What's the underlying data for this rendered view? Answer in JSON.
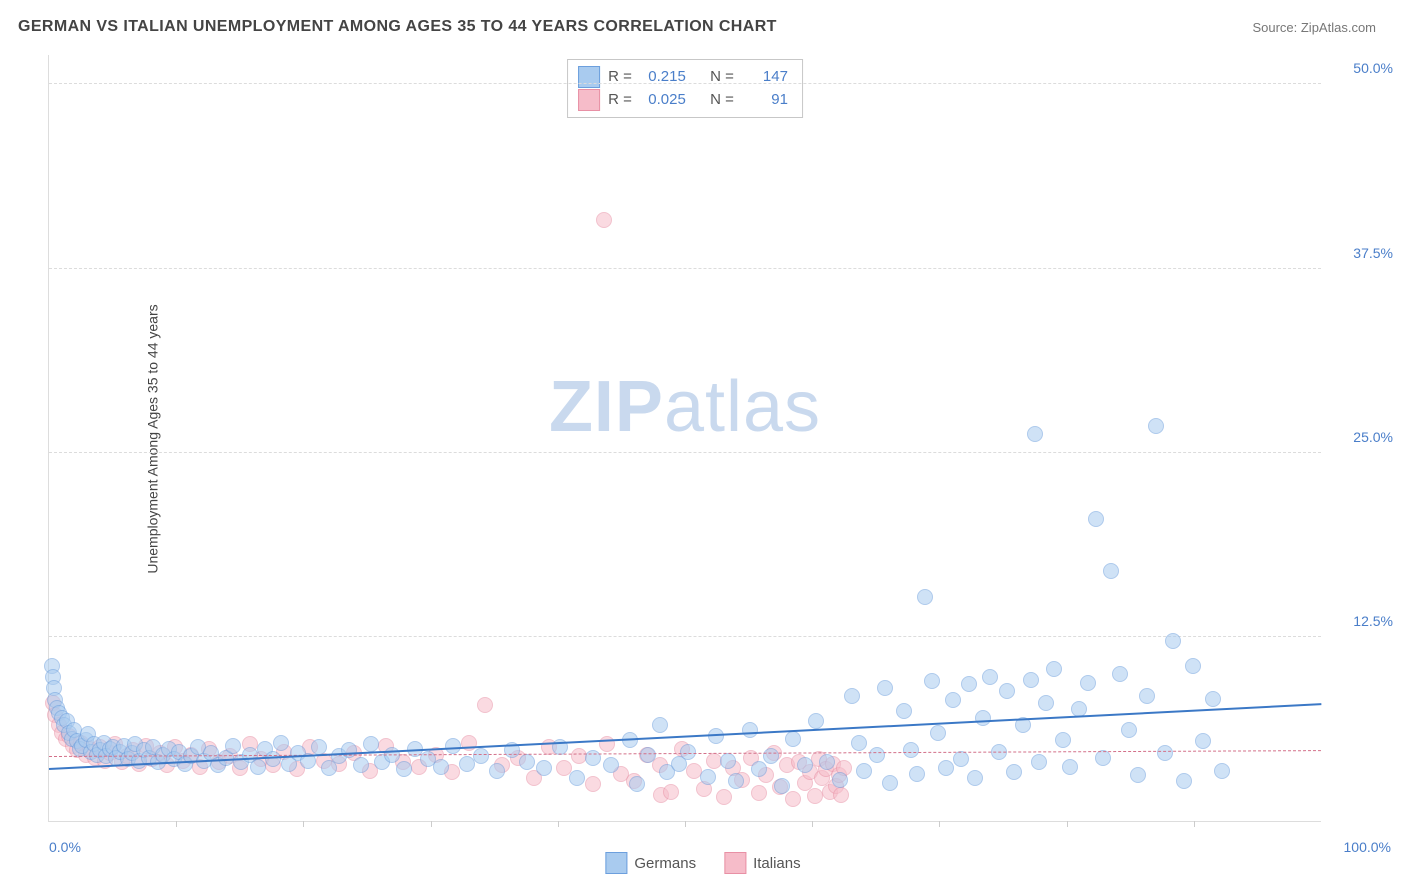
{
  "header": {
    "title": "GERMAN VS ITALIAN UNEMPLOYMENT AMONG AGES 35 TO 44 YEARS CORRELATION CHART",
    "source": "Source: ZipAtlas.com"
  },
  "watermark": {
    "part1": "ZIP",
    "part2": "atlas"
  },
  "chart": {
    "type": "scatter",
    "y_axis_title": "Unemployment Among Ages 35 to 44 years",
    "xlim": [
      0,
      100
    ],
    "ylim": [
      0,
      52
    ],
    "x_axis_labels": [
      {
        "pos": 0,
        "text": "0.0%"
      },
      {
        "pos": 100,
        "text": "100.0%"
      }
    ],
    "x_ticks": [
      10,
      20,
      30,
      40,
      50,
      60,
      70,
      80,
      90
    ],
    "y_gridlines": [
      {
        "val": 12.5,
        "label": "12.5%"
      },
      {
        "val": 25.0,
        "label": "25.0%"
      },
      {
        "val": 37.5,
        "label": "37.5%"
      },
      {
        "val": 50.0,
        "label": "50.0%"
      }
    ],
    "background_color": "#ffffff",
    "grid_color": "#dcdcdc",
    "marker_radius": 8,
    "marker_opacity": 0.55,
    "series": [
      {
        "name": "Germans",
        "fill_color": "#a9cbef",
        "stroke_color": "#6c9fdd",
        "trend": {
          "y_at_x0": 3.6,
          "y_at_x100": 8.0,
          "color": "#3b78c6",
          "width": 2.5,
          "dash": "solid"
        },
        "stats": {
          "R": "0.215",
          "N": "147"
        },
        "points": [
          [
            0.2,
            10.5
          ],
          [
            0.3,
            9.8
          ],
          [
            0.4,
            9.0
          ],
          [
            0.5,
            8.2
          ],
          [
            0.6,
            7.7
          ],
          [
            0.8,
            7.3
          ],
          [
            1.0,
            7.0
          ],
          [
            1.2,
            6.5
          ],
          [
            1.4,
            6.8
          ],
          [
            1.6,
            6.0
          ],
          [
            1.8,
            5.6
          ],
          [
            2.0,
            6.2
          ],
          [
            2.2,
            5.4
          ],
          [
            2.4,
            4.9
          ],
          [
            2.6,
            5.1
          ],
          [
            2.9,
            5.5
          ],
          [
            3.1,
            5.9
          ],
          [
            3.3,
            4.7
          ],
          [
            3.5,
            5.2
          ],
          [
            3.8,
            4.5
          ],
          [
            4.0,
            4.8
          ],
          [
            4.3,
            5.3
          ],
          [
            4.5,
            4.4
          ],
          [
            4.8,
            4.9
          ],
          [
            5.0,
            5.0
          ],
          [
            5.3,
            4.3
          ],
          [
            5.6,
            4.7
          ],
          [
            5.9,
            5.1
          ],
          [
            6.2,
            4.2
          ],
          [
            6.5,
            4.6
          ],
          [
            6.8,
            5.2
          ],
          [
            7.1,
            4.1
          ],
          [
            7.5,
            4.8
          ],
          [
            7.9,
            4.3
          ],
          [
            8.2,
            5.0
          ],
          [
            8.6,
            4.0
          ],
          [
            9.0,
            4.5
          ],
          [
            9.4,
            4.9
          ],
          [
            9.8,
            4.2
          ],
          [
            10.2,
            4.7
          ],
          [
            10.7,
            3.9
          ],
          [
            11.2,
            4.4
          ],
          [
            11.7,
            5.0
          ],
          [
            12.2,
            4.1
          ],
          [
            12.7,
            4.6
          ],
          [
            13.3,
            3.8
          ],
          [
            13.9,
            4.3
          ],
          [
            14.5,
            5.1
          ],
          [
            15.1,
            4.0
          ],
          [
            15.8,
            4.5
          ],
          [
            16.4,
            3.7
          ],
          [
            17.0,
            4.9
          ],
          [
            17.6,
            4.2
          ],
          [
            18.2,
            5.3
          ],
          [
            18.9,
            3.9
          ],
          [
            19.6,
            4.6
          ],
          [
            20.4,
            4.1
          ],
          [
            21.2,
            5.0
          ],
          [
            22.0,
            3.6
          ],
          [
            22.8,
            4.4
          ],
          [
            23.6,
            4.8
          ],
          [
            24.5,
            3.8
          ],
          [
            25.3,
            5.2
          ],
          [
            26.2,
            4.0
          ],
          [
            27.0,
            4.5
          ],
          [
            27.9,
            3.5
          ],
          [
            28.8,
            4.9
          ],
          [
            29.8,
            4.2
          ],
          [
            30.8,
            3.7
          ],
          [
            31.8,
            5.1
          ],
          [
            32.9,
            3.9
          ],
          [
            34.0,
            4.4
          ],
          [
            35.2,
            3.4
          ],
          [
            36.4,
            4.8
          ],
          [
            37.6,
            4.0
          ],
          [
            38.9,
            3.6
          ],
          [
            40.2,
            5.0
          ],
          [
            41.5,
            2.9
          ],
          [
            42.8,
            4.3
          ],
          [
            44.2,
            3.8
          ],
          [
            45.7,
            5.5
          ],
          [
            46.2,
            2.5
          ],
          [
            47.1,
            4.5
          ],
          [
            48.0,
            6.5
          ],
          [
            48.6,
            3.3
          ],
          [
            49.5,
            3.9
          ],
          [
            50.2,
            4.7
          ],
          [
            51.8,
            3.0
          ],
          [
            52.4,
            5.8
          ],
          [
            53.4,
            4.1
          ],
          [
            54.0,
            2.7
          ],
          [
            55.1,
            6.2
          ],
          [
            55.8,
            3.5
          ],
          [
            56.8,
            4.4
          ],
          [
            57.6,
            2.4
          ],
          [
            58.5,
            5.6
          ],
          [
            59.4,
            3.8
          ],
          [
            60.3,
            6.8
          ],
          [
            61.2,
            4.0
          ],
          [
            62.2,
            2.8
          ],
          [
            63.1,
            8.5
          ],
          [
            63.7,
            5.3
          ],
          [
            64.1,
            3.4
          ],
          [
            65.1,
            4.5
          ],
          [
            65.7,
            9.0
          ],
          [
            66.1,
            2.6
          ],
          [
            67.2,
            7.5
          ],
          [
            67.8,
            4.8
          ],
          [
            68.2,
            3.2
          ],
          [
            68.9,
            15.2
          ],
          [
            69.4,
            9.5
          ],
          [
            69.9,
            6.0
          ],
          [
            70.5,
            3.6
          ],
          [
            71.1,
            8.2
          ],
          [
            71.7,
            4.2
          ],
          [
            72.3,
            9.3
          ],
          [
            72.8,
            2.9
          ],
          [
            73.4,
            7.0
          ],
          [
            74.0,
            9.8
          ],
          [
            74.7,
            4.7
          ],
          [
            75.3,
            8.8
          ],
          [
            75.9,
            3.3
          ],
          [
            76.6,
            6.5
          ],
          [
            77.2,
            9.6
          ],
          [
            77.5,
            26.3
          ],
          [
            77.8,
            4.0
          ],
          [
            78.4,
            8.0
          ],
          [
            79.0,
            10.3
          ],
          [
            79.7,
            5.5
          ],
          [
            80.3,
            3.7
          ],
          [
            81.0,
            7.6
          ],
          [
            81.7,
            9.4
          ],
          [
            82.3,
            20.5
          ],
          [
            82.9,
            4.3
          ],
          [
            83.5,
            17.0
          ],
          [
            84.2,
            10.0
          ],
          [
            84.9,
            6.2
          ],
          [
            85.6,
            3.1
          ],
          [
            86.3,
            8.5
          ],
          [
            87.0,
            26.8
          ],
          [
            87.7,
            4.6
          ],
          [
            88.4,
            12.2
          ],
          [
            89.2,
            2.7
          ],
          [
            89.9,
            10.5
          ],
          [
            90.7,
            5.4
          ],
          [
            91.5,
            8.3
          ],
          [
            92.2,
            3.4
          ]
        ]
      },
      {
        "name": "Italians",
        "fill_color": "#f6bcc9",
        "stroke_color": "#e890a5",
        "trend": {
          "y_at_x0": 4.4,
          "y_at_x100": 4.8,
          "color": "#d37089",
          "width": 1.5,
          "dash": "dashed"
        },
        "stats": {
          "R": "0.025",
          "N": "91"
        },
        "points": [
          [
            0.3,
            8.0
          ],
          [
            0.5,
            7.2
          ],
          [
            0.8,
            6.5
          ],
          [
            1.0,
            6.0
          ],
          [
            1.3,
            5.6
          ],
          [
            1.6,
            5.8
          ],
          [
            1.9,
            5.1
          ],
          [
            2.2,
            4.8
          ],
          [
            2.5,
            5.3
          ],
          [
            2.9,
            4.5
          ],
          [
            3.2,
            4.9
          ],
          [
            3.6,
            4.3
          ],
          [
            4.0,
            5.0
          ],
          [
            4.4,
            4.1
          ],
          [
            4.8,
            4.6
          ],
          [
            5.2,
            5.2
          ],
          [
            5.7,
            4.0
          ],
          [
            6.1,
            4.4
          ],
          [
            6.6,
            4.8
          ],
          [
            7.1,
            3.9
          ],
          [
            7.6,
            5.1
          ],
          [
            8.1,
            4.2
          ],
          [
            8.7,
            4.6
          ],
          [
            9.3,
            3.8
          ],
          [
            9.9,
            5.0
          ],
          [
            10.5,
            4.1
          ],
          [
            11.2,
            4.5
          ],
          [
            11.9,
            3.7
          ],
          [
            12.6,
            4.9
          ],
          [
            13.4,
            4.0
          ],
          [
            14.2,
            4.4
          ],
          [
            15.0,
            3.6
          ],
          [
            15.8,
            5.2
          ],
          [
            16.7,
            4.2
          ],
          [
            17.6,
            3.8
          ],
          [
            18.5,
            4.7
          ],
          [
            19.5,
            3.5
          ],
          [
            20.5,
            5.0
          ],
          [
            21.6,
            4.1
          ],
          [
            22.8,
            3.9
          ],
          [
            24.0,
            4.6
          ],
          [
            25.2,
            3.4
          ],
          [
            26.5,
            5.1
          ],
          [
            27.8,
            4.0
          ],
          [
            29.1,
            3.7
          ],
          [
            30.4,
            4.5
          ],
          [
            31.7,
            3.3
          ],
          [
            33.0,
            5.3
          ],
          [
            34.3,
            7.9
          ],
          [
            35.6,
            3.8
          ],
          [
            36.9,
            4.3
          ],
          [
            38.1,
            2.9
          ],
          [
            39.3,
            5.0
          ],
          [
            40.5,
            3.6
          ],
          [
            41.7,
            4.4
          ],
          [
            42.8,
            2.5
          ],
          [
            43.6,
            40.8
          ],
          [
            43.9,
            5.2
          ],
          [
            45.0,
            3.2
          ],
          [
            46.0,
            2.7
          ],
          [
            47.0,
            4.5
          ],
          [
            48.0,
            3.8
          ],
          [
            48.1,
            1.8
          ],
          [
            48.9,
            2.0
          ],
          [
            49.8,
            4.9
          ],
          [
            50.7,
            3.4
          ],
          [
            51.5,
            2.2
          ],
          [
            52.3,
            4.1
          ],
          [
            53.1,
            1.6
          ],
          [
            53.8,
            3.6
          ],
          [
            54.5,
            2.8
          ],
          [
            55.2,
            4.3
          ],
          [
            55.8,
            1.9
          ],
          [
            56.4,
            3.1
          ],
          [
            57.0,
            4.6
          ],
          [
            57.5,
            2.3
          ],
          [
            58.0,
            3.8
          ],
          [
            58.5,
            1.5
          ],
          [
            59.0,
            4.0
          ],
          [
            59.4,
            2.6
          ],
          [
            59.8,
            3.3
          ],
          [
            60.2,
            1.7
          ],
          [
            60.5,
            4.2
          ],
          [
            60.8,
            2.9
          ],
          [
            61.1,
            3.5
          ],
          [
            61.4,
            2.0
          ],
          [
            61.6,
            3.9
          ],
          [
            61.9,
            2.4
          ],
          [
            62.1,
            3.1
          ],
          [
            62.3,
            1.8
          ],
          [
            62.5,
            3.6
          ]
        ]
      }
    ]
  },
  "stats_box": {
    "R_label": "R =",
    "N_label": "N ="
  },
  "legend": {
    "germans": "Germans",
    "italians": "Italians"
  }
}
